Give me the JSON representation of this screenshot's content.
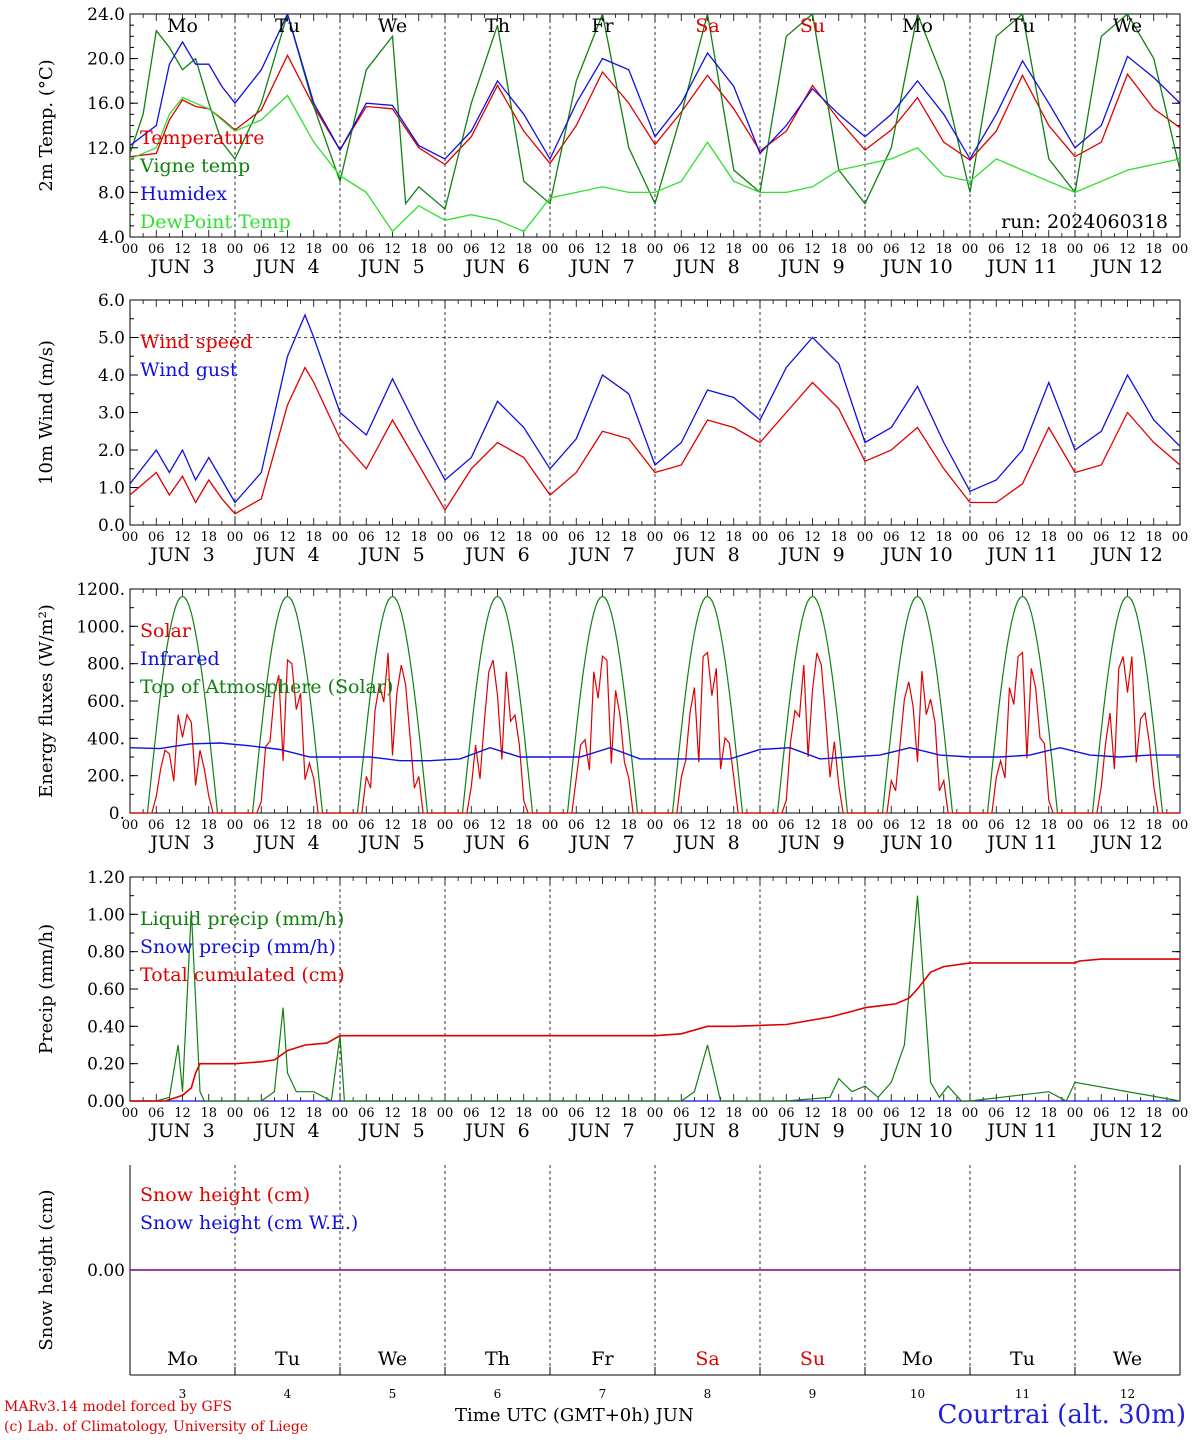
{
  "footer": {
    "model_line": "MARv3.14 model forced by GFS",
    "credit_line": "(c) Lab. of Climatology, University of Liege",
    "time_axis": "Time UTC (GMT+0h) JUN",
    "location": "Courtrai (alt. 30m)"
  },
  "colors": {
    "red": "#e00000",
    "blue": "#1010e0",
    "dark_green": "#108010",
    "light_green": "#30e030",
    "purple": "#800080"
  },
  "chart_data": [
    {
      "type": "line",
      "id": "temperature",
      "ylabel": "2m Temp. (°C)",
      "ylim": [
        4.0,
        24.0
      ],
      "yticks": [
        "4.0",
        "8.0",
        "12.0",
        "16.0",
        "20.0",
        "24.0"
      ],
      "ytick_values": [
        4,
        8,
        12,
        16,
        20,
        24
      ],
      "day_labels_top": [
        "Mo",
        "Tu",
        "We",
        "Th",
        "Fr",
        "Sa",
        "Su",
        "Mo",
        "Tu",
        "We"
      ],
      "day_label_colors": [
        "#000",
        "#000",
        "#000",
        "#000",
        "#000",
        "#e00000",
        "#e00000",
        "#000",
        "#000",
        "#000"
      ],
      "date_labels": [
        "JUN  3",
        "JUN  4",
        "JUN  5",
        "JUN  6",
        "JUN  7",
        "JUN  8",
        "JUN  9",
        "JUN 10",
        "JUN 11",
        "JUN 12"
      ],
      "hour_labels": [
        "00",
        "06",
        "12",
        "18"
      ],
      "run_label": "run: 2024060318",
      "legend": "top-left",
      "x_unit": "hours from 2024-06-03 00 UTC",
      "series": [
        {
          "name": "Temperature",
          "color": "#e00000",
          "x": [
            0,
            6,
            9,
            12,
            15,
            18,
            21,
            24,
            30,
            36,
            42,
            48,
            54,
            60,
            66,
            72,
            78,
            84,
            90,
            96,
            102,
            108,
            114,
            120,
            126,
            132,
            138,
            144,
            150,
            156,
            162,
            168,
            174,
            180,
            186,
            192,
            198,
            204,
            210,
            216,
            222,
            228,
            234,
            240
          ],
          "values": [
            11.2,
            11.5,
            14.5,
            16.3,
            15.7,
            15.5,
            14.6,
            13.6,
            15.4,
            20.3,
            15.7,
            11.8,
            15.7,
            15.5,
            12,
            10.5,
            13,
            17.6,
            13.5,
            10.6,
            14,
            18.8,
            16,
            12.3,
            15.2,
            18.5,
            15.5,
            11.7,
            13.5,
            17.6,
            14.5,
            11.8,
            13.6,
            16.5,
            12.5,
            10.9,
            13.5,
            18.5,
            14,
            11.2,
            12.5,
            18.6,
            15.5,
            13.8
          ]
        },
        {
          "name": "Vigne temp",
          "color": "#108010",
          "x": [
            0,
            3,
            6,
            9,
            12,
            15,
            18,
            21,
            24,
            30,
            36,
            42,
            48,
            54,
            60,
            63,
            66,
            72,
            78,
            84,
            90,
            96,
            102,
            108,
            114,
            120,
            126,
            132,
            138,
            144,
            150,
            156,
            162,
            168,
            174,
            180,
            186,
            192,
            198,
            204,
            210,
            216,
            222,
            228,
            234,
            240
          ],
          "values": [
            11.5,
            15,
            22.5,
            21,
            19,
            20,
            16,
            12.5,
            11,
            16,
            24,
            15.7,
            9,
            19,
            22,
            7,
            8.5,
            6.5,
            16,
            23,
            9,
            7,
            18,
            24,
            12,
            7,
            15,
            24,
            10,
            8,
            22,
            24,
            10,
            7,
            12,
            24,
            18,
            8,
            22,
            24,
            11,
            8,
            22,
            24,
            20,
            10
          ]
        },
        {
          "name": "Humidex",
          "color": "#1010e0",
          "x": [
            0,
            6,
            9,
            12,
            15,
            18,
            21,
            24,
            30,
            36,
            42,
            48,
            54,
            60,
            66,
            72,
            78,
            84,
            90,
            96,
            102,
            108,
            114,
            120,
            126,
            132,
            138,
            144,
            150,
            156,
            162,
            168,
            174,
            180,
            186,
            192,
            198,
            204,
            210,
            216,
            222,
            228,
            234,
            240
          ],
          "values": [
            12.2,
            14,
            19.5,
            21.5,
            19.5,
            19.5,
            17.5,
            16,
            19,
            24,
            16,
            11.8,
            16,
            15.8,
            12.2,
            11,
            13.5,
            18,
            15,
            11,
            16,
            20,
            19,
            13,
            16,
            20.5,
            17.5,
            11.5,
            14,
            17.3,
            15,
            13,
            15,
            18,
            15,
            11,
            15,
            19.8,
            16,
            12,
            14,
            20.2,
            18.3,
            16
          ]
        },
        {
          "name": "DewPoint Temp",
          "color": "#30e030",
          "x": [
            0,
            6,
            9,
            12,
            15,
            18,
            21,
            24,
            30,
            36,
            42,
            48,
            54,
            60,
            66,
            72,
            78,
            84,
            90,
            96,
            102,
            108,
            114,
            120,
            126,
            132,
            138,
            144,
            150,
            156,
            162,
            168,
            174,
            180,
            186,
            192,
            198,
            204,
            210,
            216,
            222,
            228,
            234,
            240
          ],
          "values": [
            11,
            12,
            15,
            16.5,
            16,
            15.5,
            14.5,
            13.5,
            14.5,
            16.7,
            12.5,
            9.5,
            8,
            4.5,
            6.8,
            5.5,
            6,
            5.5,
            4.5,
            7.5,
            8,
            8.5,
            8,
            8,
            9,
            12.5,
            9,
            8,
            8,
            8.5,
            10,
            10.5,
            11,
            12,
            9.5,
            9,
            11,
            10,
            9,
            8,
            9,
            10,
            10.5,
            11
          ]
        }
      ]
    },
    {
      "type": "line",
      "id": "wind",
      "ylabel": "10m Wind (m/s)",
      "ylim": [
        0.0,
        6.0
      ],
      "yticks": [
        "0.0",
        "1.0",
        "2.0",
        "3.0",
        "4.0",
        "5.0",
        "6.0"
      ],
      "ytick_values": [
        0,
        1,
        2,
        3,
        4,
        5,
        6
      ],
      "ref_line": 5.0,
      "date_labels": [
        "JUN  3",
        "JUN  4",
        "JUN  5",
        "JUN  6",
        "JUN  7",
        "JUN  8",
        "JUN  9",
        "JUN 10",
        "JUN 11",
        "JUN 12"
      ],
      "hour_labels": [
        "00",
        "06",
        "12",
        "18"
      ],
      "legend": "top-left",
      "series": [
        {
          "name": "Wind speed",
          "color": "#e00000",
          "x": [
            0,
            6,
            9,
            12,
            15,
            18,
            21,
            24,
            30,
            36,
            40,
            42,
            48,
            54,
            60,
            66,
            72,
            78,
            84,
            90,
            96,
            102,
            108,
            114,
            120,
            126,
            132,
            138,
            144,
            150,
            156,
            162,
            168,
            174,
            180,
            186,
            192,
            198,
            204,
            210,
            216,
            222,
            228,
            234,
            240
          ],
          "values": [
            0.8,
            1.4,
            0.8,
            1.3,
            0.6,
            1.2,
            0.7,
            0.3,
            0.7,
            3.2,
            4.2,
            3.8,
            2.3,
            1.5,
            2.8,
            1.6,
            0.4,
            1.5,
            2.2,
            1.8,
            0.8,
            1.4,
            2.5,
            2.3,
            1.4,
            1.6,
            2.8,
            2.6,
            2.2,
            3.0,
            3.8,
            3.1,
            1.7,
            2.0,
            2.6,
            1.5,
            0.6,
            0.6,
            1.1,
            2.6,
            1.4,
            1.6,
            3.0,
            2.2,
            1.6
          ]
        },
        {
          "name": "Wind gust",
          "color": "#1010e0",
          "x": [
            0,
            6,
            9,
            12,
            15,
            18,
            21,
            24,
            30,
            36,
            40,
            42,
            48,
            54,
            60,
            66,
            72,
            78,
            84,
            90,
            96,
            102,
            108,
            114,
            120,
            126,
            132,
            138,
            144,
            150,
            156,
            162,
            168,
            174,
            180,
            186,
            192,
            198,
            204,
            210,
            216,
            222,
            228,
            234,
            240
          ],
          "values": [
            1.1,
            2.0,
            1.4,
            2.0,
            1.2,
            1.8,
            1.2,
            0.6,
            1.4,
            4.5,
            5.6,
            5.0,
            3.0,
            2.4,
            3.9,
            2.5,
            1.2,
            1.8,
            3.3,
            2.6,
            1.5,
            2.3,
            4.0,
            3.5,
            1.6,
            2.2,
            3.6,
            3.4,
            2.8,
            4.2,
            5.0,
            4.3,
            2.2,
            2.6,
            3.7,
            2.2,
            0.9,
            1.2,
            2.0,
            3.8,
            2.0,
            2.5,
            4.0,
            2.8,
            2.1
          ]
        }
      ]
    },
    {
      "type": "line",
      "id": "energy",
      "ylabel": "Energy fluxes (W/m²)",
      "ylim": [
        0,
        1200
      ],
      "yticks": [
        "0.",
        "200.",
        "400.",
        "600.",
        "800.",
        "1000.",
        "1200."
      ],
      "ytick_values": [
        0,
        200,
        400,
        600,
        800,
        1000,
        1200
      ],
      "date_labels": [
        "JUN  3",
        "JUN  4",
        "JUN  5",
        "JUN  6",
        "JUN  7",
        "JUN  8",
        "JUN  9",
        "JUN 10",
        "JUN 11",
        "JUN 12"
      ],
      "hour_labels": [
        "00",
        "06",
        "12",
        "18"
      ],
      "legend": "top-left",
      "toa_peak": 1160,
      "solar_peaks": [
        540,
        820,
        880,
        840,
        840,
        860,
        880,
        780,
        860,
        860
      ],
      "infrared_values": [
        350,
        345,
        370,
        375,
        360,
        340,
        300,
        300,
        300,
        280,
        280,
        290,
        350,
        300,
        300,
        300,
        350,
        290,
        290,
        290,
        290,
        340,
        350,
        290,
        300,
        310,
        350,
        310,
        300,
        300,
        310,
        350,
        310,
        300,
        310,
        310
      ],
      "series": [
        {
          "name": "Solar",
          "color": "#e00000"
        },
        {
          "name": "Infrared",
          "color": "#1010e0"
        },
        {
          "name": "Top of Atmosphere (Solar)",
          "color": "#108010"
        }
      ]
    },
    {
      "type": "line",
      "id": "precip",
      "ylabel": "Precip (mm/h)",
      "ylim": [
        0.0,
        1.2
      ],
      "yticks": [
        "0.00",
        "0.20",
        "0.40",
        "0.60",
        "0.80",
        "1.00",
        "1.20"
      ],
      "ytick_values": [
        0,
        0.2,
        0.4,
        0.6,
        0.8,
        1.0,
        1.2
      ],
      "date_labels": [
        "JUN  3",
        "JUN  4",
        "JUN  5",
        "JUN  6",
        "JUN  7",
        "JUN  8",
        "JUN  9",
        "JUN 10",
        "JUN 11",
        "JUN 12"
      ],
      "hour_labels": [
        "00",
        "06",
        "12",
        "18"
      ],
      "legend": "top-left",
      "series": [
        {
          "name": "Liquid precip (mm/h)",
          "color": "#108010",
          "x": [
            0,
            6,
            9,
            11,
            12,
            14,
            16,
            17,
            19,
            24,
            30,
            33,
            35,
            36,
            38,
            42,
            46,
            48,
            49,
            60,
            120,
            126,
            129,
            132,
            135,
            137,
            150,
            160,
            162,
            165,
            168,
            171,
            174,
            177,
            180,
            183,
            185,
            187,
            190,
            192,
            210,
            214,
            216,
            240
          ],
          "values": [
            0,
            0,
            0.02,
            0.3,
            0.05,
            1.02,
            0.05,
            0,
            0,
            0,
            0,
            0.05,
            0.5,
            0.15,
            0.05,
            0.05,
            0,
            0.35,
            0,
            0,
            0,
            0,
            0.05,
            0.3,
            0,
            0,
            0,
            0.02,
            0.12,
            0.05,
            0.08,
            0.02,
            0.1,
            0.3,
            1.1,
            0.1,
            0.02,
            0.08,
            0,
            0,
            0.05,
            0,
            0.1,
            0
          ]
        },
        {
          "name": "Snow precip (mm/h)",
          "color": "#1010e0",
          "x": [
            0,
            240
          ],
          "values": [
            0,
            0
          ]
        },
        {
          "name": "Total cumulated (cm)",
          "color": "#e00000",
          "x": [
            0,
            8,
            12,
            14,
            15,
            16,
            18,
            24,
            30,
            33,
            36,
            40,
            45,
            48,
            50,
            120,
            126,
            132,
            138,
            150,
            160,
            165,
            168,
            175,
            178,
            180,
            183,
            186,
            192,
            216,
            217,
            222,
            240
          ],
          "values": [
            0,
            0,
            0.03,
            0.07,
            0.15,
            0.2,
            0.2,
            0.2,
            0.21,
            0.22,
            0.27,
            0.3,
            0.31,
            0.35,
            0.35,
            0.35,
            0.36,
            0.4,
            0.4,
            0.41,
            0.45,
            0.48,
            0.5,
            0.52,
            0.55,
            0.6,
            0.69,
            0.72,
            0.74,
            0.74,
            0.75,
            0.76,
            0.76
          ]
        }
      ]
    },
    {
      "type": "line",
      "id": "snow",
      "ylabel": "Snow height (cm)",
      "ytick_values": [
        0
      ],
      "yticks": [
        "0.00"
      ],
      "legend": "top-left",
      "day_labels_bottom": [
        "Mo",
        "Tu",
        "We",
        "Th",
        "Fr",
        "Sa",
        "Su",
        "Mo",
        "Tu",
        "We"
      ],
      "day_numbers": [
        "3",
        "4",
        "5",
        "6",
        "7",
        "8",
        "9",
        "10",
        "11",
        "12"
      ],
      "series": [
        {
          "name": "Snow height (cm)",
          "color": "#e00000"
        },
        {
          "name": "Snow height (cm W.E.)",
          "color": "#1010e0"
        }
      ]
    }
  ]
}
